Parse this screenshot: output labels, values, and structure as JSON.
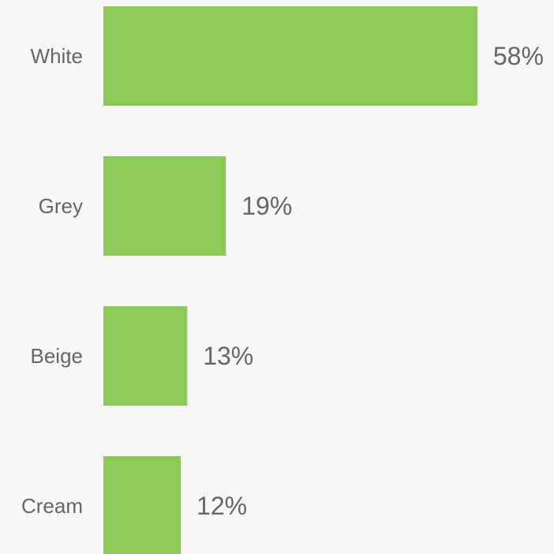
{
  "chart_data": {
    "type": "bar",
    "orientation": "horizontal",
    "categories": [
      "White",
      "Grey",
      "Beige",
      "Cream"
    ],
    "values": [
      58,
      19,
      13,
      12
    ],
    "value_labels": [
      "58%",
      "19%",
      "13%",
      "12%"
    ],
    "unit": "%",
    "xlim": [
      0,
      100
    ],
    "title": "",
    "xlabel": "",
    "ylabel": "",
    "grid": false,
    "legend": "none",
    "bar_color": "#8cc957"
  },
  "colors": {
    "background": "#f7f7f7",
    "bar": "#8cc957",
    "text": "#666666"
  }
}
